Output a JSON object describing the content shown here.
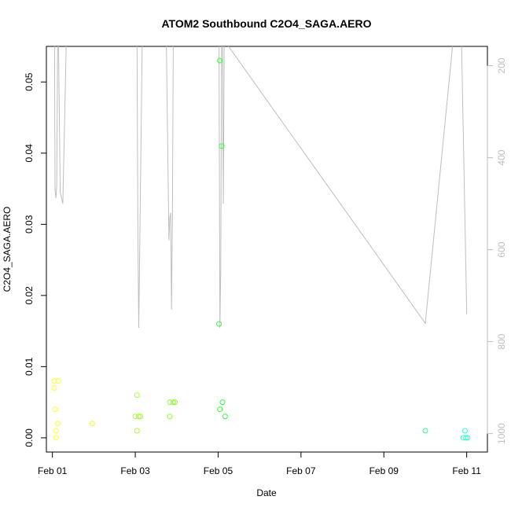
{
  "chart_data": {
    "type": "scatter",
    "title": "ATOM2 Southbound C2O4_SAGA.AERO",
    "xlabel": "Date",
    "ylabel": "C2O4_SAGA.AERO",
    "xlim": [
      "2017-01-31T20:30",
      "2017-02-11T12:00"
    ],
    "ylim": [
      -0.002,
      0.055
    ],
    "x_ticks": [
      {
        "date": "2017-02-01",
        "label": "Feb 01"
      },
      {
        "date": "2017-02-03",
        "label": "Feb 03"
      },
      {
        "date": "2017-02-05",
        "label": "Feb 05"
      },
      {
        "date": "2017-02-07",
        "label": "Feb 07"
      },
      {
        "date": "2017-02-09",
        "label": "Feb 09"
      },
      {
        "date": "2017-02-11",
        "label": "Feb 11"
      }
    ],
    "y_ticks": [
      {
        "value": 0.0,
        "label": "0.00"
      },
      {
        "value": 0.01,
        "label": "0.01"
      },
      {
        "value": 0.02,
        "label": "0.02"
      },
      {
        "value": 0.03,
        "label": "0.03"
      },
      {
        "value": 0.04,
        "label": "0.04"
      },
      {
        "value": 0.05,
        "label": "0.05"
      }
    ],
    "right_axis": {
      "reversed": true,
      "lim": [
        158,
        1040
      ],
      "ticks": [
        {
          "value": 200,
          "label": "200"
        },
        {
          "value": 400,
          "label": "400"
        },
        {
          "value": 600,
          "label": "600"
        },
        {
          "value": 800,
          "label": "800"
        },
        {
          "value": 1000,
          "label": "1000"
        }
      ],
      "color": "#bebebe"
    },
    "grid": false,
    "points": [
      {
        "x": "2017-02-01T01:00",
        "y": 0.008,
        "color": "#ffff33"
      },
      {
        "x": "2017-02-01T03:30",
        "y": 0.008,
        "color": "#ffff33"
      },
      {
        "x": "2017-02-01T01:00",
        "y": 0.007,
        "color": "#ffff33"
      },
      {
        "x": "2017-02-01T01:30",
        "y": 0.004,
        "color": "#ffff33"
      },
      {
        "x": "2017-02-01T03:00",
        "y": 0.002,
        "color": "#ffff33"
      },
      {
        "x": "2017-02-01T02:00",
        "y": 0.001,
        "color": "#ffff33"
      },
      {
        "x": "2017-02-01T02:00",
        "y": 0.0,
        "color": "#ffff33"
      },
      {
        "x": "2017-02-01T23:00",
        "y": 0.002,
        "color": "#eaff33"
      },
      {
        "x": "2017-02-03T01:00",
        "y": 0.006,
        "color": "#a6ff33"
      },
      {
        "x": "2017-02-03T00:00",
        "y": 0.003,
        "color": "#a6ff33"
      },
      {
        "x": "2017-02-03T02:00",
        "y": 0.003,
        "color": "#a6ff33"
      },
      {
        "x": "2017-02-03T03:00",
        "y": 0.003,
        "color": "#a6ff33"
      },
      {
        "x": "2017-02-03T01:00",
        "y": 0.001,
        "color": "#a6ff33"
      },
      {
        "x": "2017-02-03T20:00",
        "y": 0.005,
        "color": "#8cff33"
      },
      {
        "x": "2017-02-03T22:00",
        "y": 0.005,
        "color": "#8cff33"
      },
      {
        "x": "2017-02-03T23:00",
        "y": 0.005,
        "color": "#8cff33"
      },
      {
        "x": "2017-02-03T20:00",
        "y": 0.003,
        "color": "#8cff33"
      },
      {
        "x": "2017-02-05T01:00",
        "y": 0.053,
        "color": "#33ff33"
      },
      {
        "x": "2017-02-05T02:00",
        "y": 0.041,
        "color": "#33ff33"
      },
      {
        "x": "2017-02-05T00:30",
        "y": 0.016,
        "color": "#33ff33"
      },
      {
        "x": "2017-02-05T02:30",
        "y": 0.005,
        "color": "#33ff33"
      },
      {
        "x": "2017-02-05T01:00",
        "y": 0.004,
        "color": "#33ff33"
      },
      {
        "x": "2017-02-05T04:00",
        "y": 0.003,
        "color": "#33ff33"
      },
      {
        "x": "2017-02-10T00:00",
        "y": 0.001,
        "color": "#33ff99"
      },
      {
        "x": "2017-02-10T23:00",
        "y": 0.001,
        "color": "#33ffcc"
      },
      {
        "x": "2017-02-10T22:00",
        "y": 0.0,
        "color": "#33ffcc"
      },
      {
        "x": "2017-02-10T23:30",
        "y": 0.0,
        "color": "#33ffcc"
      },
      {
        "x": "2017-02-11T00:30",
        "y": 0.0,
        "color": "#33ffcc"
      }
    ],
    "altitude_line": {
      "color": "#bebebe",
      "x": [
        "2017-02-01T01:00",
        "2017-02-01T01:15",
        "2017-02-01T01:30",
        "2017-02-01T02:00",
        "2017-02-01T02:30",
        "2017-02-01T03:00",
        "2017-02-01T03:30",
        "2017-02-01T04:30",
        "2017-02-01T06:00",
        "2017-02-01T08:00",
        "2017-02-01T09:00",
        "2017-02-01T10:30",
        "2017-02-02T18:00",
        "2017-02-02T22:00",
        "2017-02-03T00:30",
        "2017-02-03T01:00",
        "2017-02-03T01:30",
        "2017-02-03T02:00",
        "2017-02-03T04:00",
        "2017-02-03T10:00",
        "2017-02-03T18:00",
        "2017-02-03T19:30",
        "2017-02-03T20:00",
        "2017-02-03T20:30",
        "2017-02-03T21:00",
        "2017-02-03T21:30",
        "2017-02-03T22:00",
        "2017-02-04T18:00",
        "2017-02-04T21:30",
        "2017-02-04T23:30",
        "2017-02-05T00:00",
        "2017-02-05T00:30",
        "2017-02-05T01:00",
        "2017-02-05T01:30",
        "2017-02-05T02:00",
        "2017-02-05T02:30",
        "2017-02-05T03:00",
        "2017-02-05T03:30",
        "2017-02-05T04:30",
        "2017-02-10T00:00",
        "2017-02-10T16:00",
        "2017-02-10T19:00",
        "2017-02-10T21:00",
        "2017-02-11T00:00"
      ],
      "y": [
        150,
        150,
        470,
        488,
        460,
        150,
        150,
        475,
        500,
        150,
        150,
        150,
        150,
        150,
        150,
        150,
        570,
        770,
        150,
        150,
        150,
        580,
        530,
        520,
        730,
        530,
        150,
        150,
        150,
        150,
        150,
        150,
        770,
        640,
        150,
        150,
        500,
        150,
        150,
        760,
        150,
        150,
        150,
        740
      ]
    }
  }
}
